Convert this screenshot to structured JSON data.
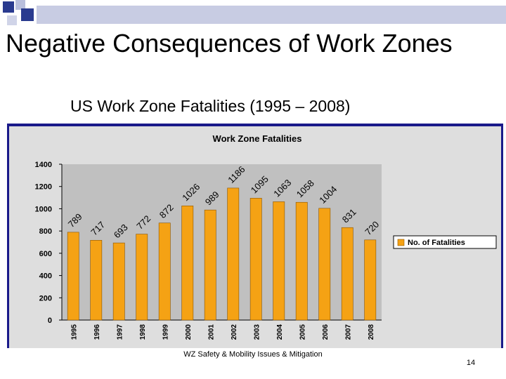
{
  "slide": {
    "title": "Negative Consequences of Work Zones",
    "subtitle": "US Work Zone Fatalities (1995 – 2008)",
    "footer": "WZ Safety & Mobility Issues & Mitigation",
    "page_number": "14"
  },
  "colors": {
    "bar": "#f5a214",
    "bar_stroke": "#8a5400",
    "plot_bg": "#c0c0c0",
    "frame": "#1a1a8a",
    "deco_blue": "#2a3b8f",
    "deco_light": "#b9bfdc"
  },
  "chart_data": {
    "type": "bar",
    "title": "Work Zone Fatalities",
    "categories": [
      "1995",
      "1996",
      "1997",
      "1998",
      "1999",
      "2000",
      "2001",
      "2002",
      "2003",
      "2004",
      "2005",
      "2006",
      "2007",
      "2008"
    ],
    "series": [
      {
        "name": "No. of Fatalities",
        "values": [
          789,
          717,
          693,
          772,
          872,
          1026,
          989,
          1186,
          1095,
          1063,
          1058,
          1004,
          831,
          720
        ]
      }
    ],
    "ylim": [
      0,
      1400
    ],
    "yticks": [
      0,
      200,
      400,
      600,
      800,
      1000,
      1200,
      1400
    ],
    "xlabel": "",
    "ylabel": "",
    "grid": false,
    "legend": "right",
    "data_labels": true
  }
}
